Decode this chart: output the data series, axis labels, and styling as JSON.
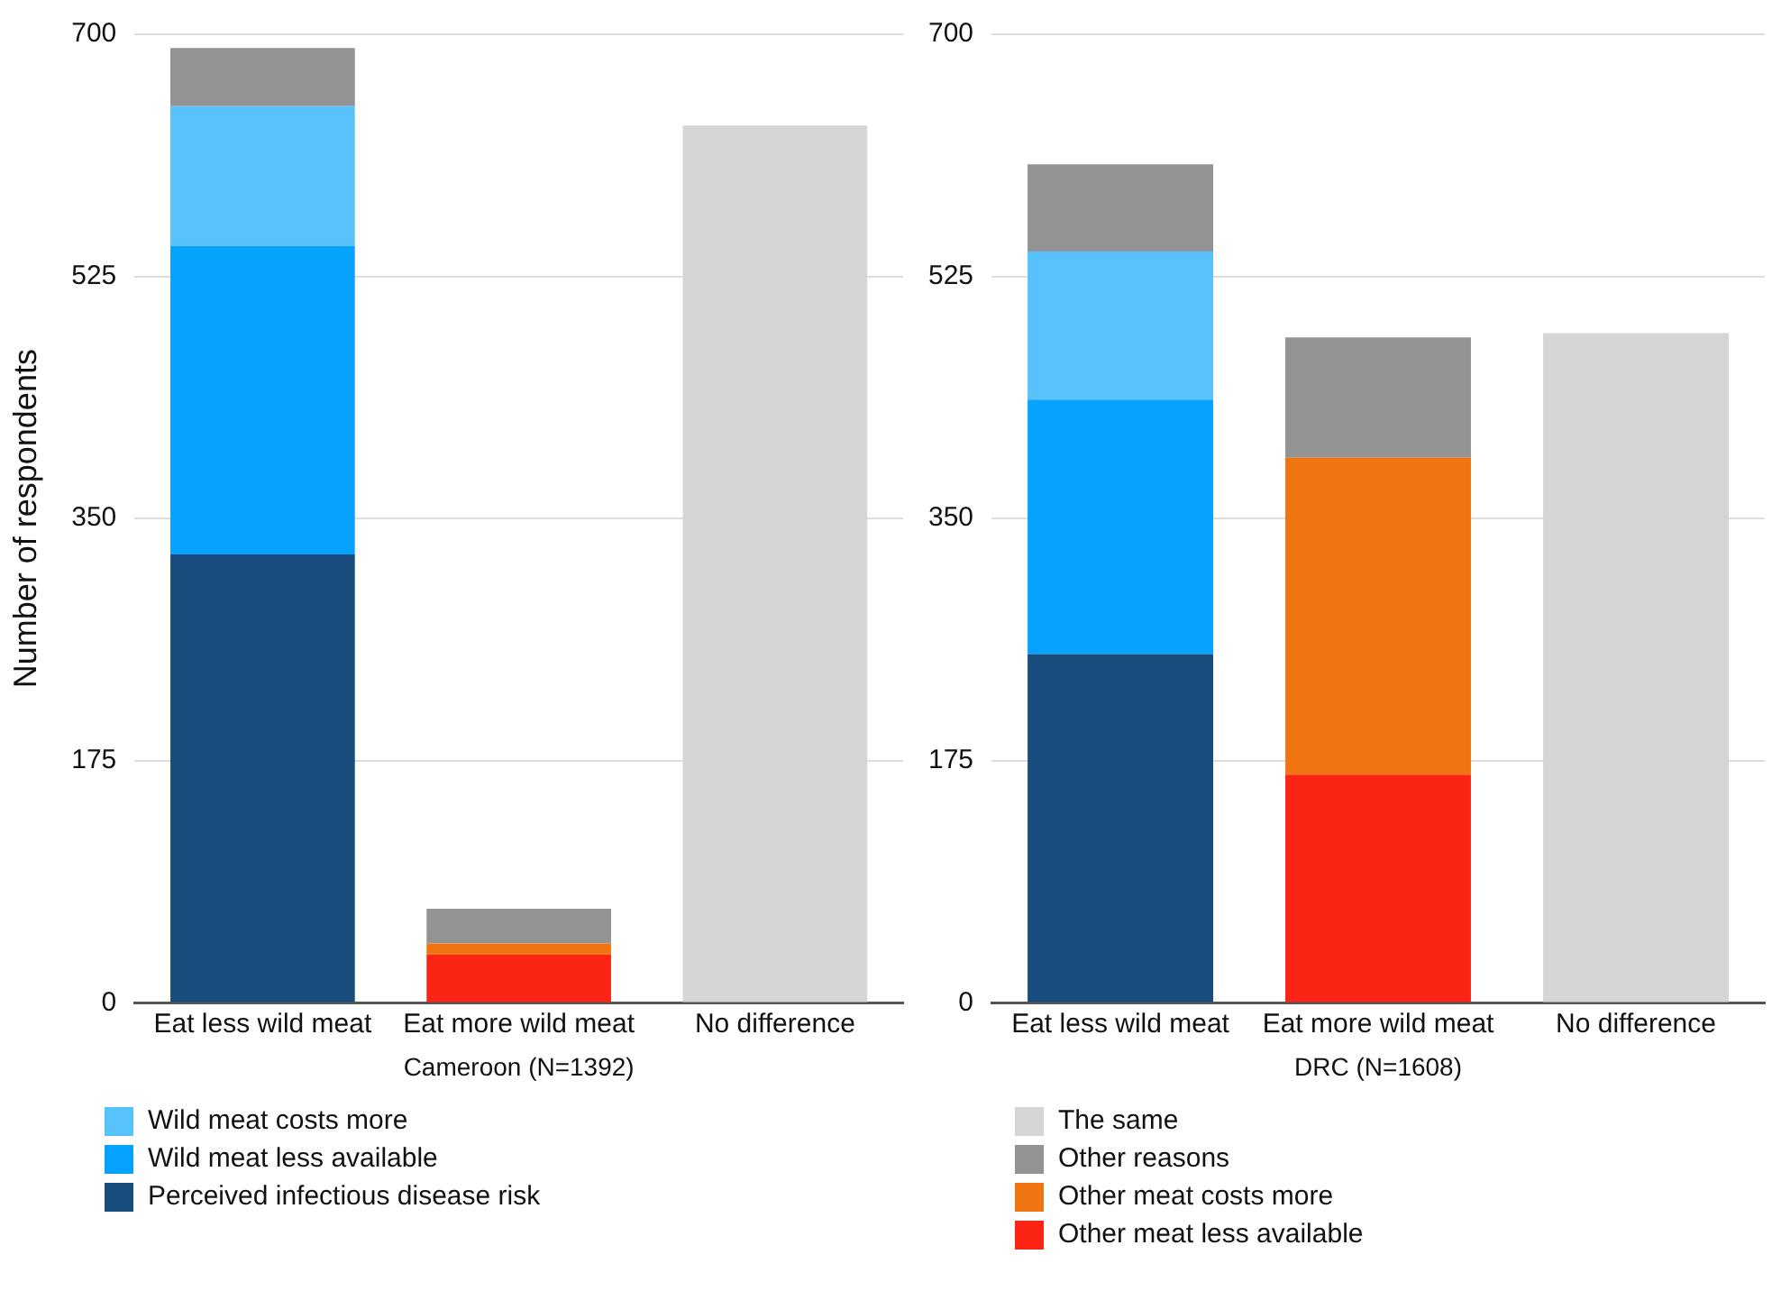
{
  "chart_data": [
    {
      "type": "bar",
      "stacked": true,
      "xlabel": "Cameroon (N=1392)",
      "ylabel": "Number of respondents",
      "categories": [
        "Eat less wild meat",
        "Eat more wild meat",
        "No difference"
      ],
      "ylim": [
        0,
        700
      ],
      "yticks": [
        0,
        175,
        350,
        525,
        700
      ],
      "grid": "y",
      "legend": "bottom",
      "series": [
        {
          "name": "Perceived infectious disease risk",
          "color": "#184c7c",
          "values": [
            324,
            null,
            null
          ]
        },
        {
          "name": "Wild meat less available",
          "color": "#05a3fd",
          "values": [
            223,
            null,
            null
          ]
        },
        {
          "name": "Wild meat costs more",
          "color": "#58c2fd",
          "values": [
            101,
            null,
            null
          ]
        },
        {
          "color": "#fc2515",
          "values": [
            null,
            35,
            null
          ]
        },
        {
          "color": "#f07410",
          "values": [
            null,
            8,
            null
          ]
        },
        {
          "color": "#939393",
          "values": [
            42,
            25,
            null
          ]
        },
        {
          "color": "#d5d5d5",
          "values": [
            null,
            null,
            634
          ]
        }
      ]
    },
    {
      "type": "bar",
      "stacked": true,
      "xlabel": "DRC (N=1608)",
      "categories": [
        "Eat less wild meat",
        "Eat more wild meat",
        "No difference"
      ],
      "ylim": [
        0,
        700
      ],
      "yticks": [
        0,
        175,
        350,
        525,
        700
      ],
      "grid": "y",
      "legend": "bottom",
      "series": [
        {
          "color": "#184c7c",
          "values": [
            252,
            null,
            null
          ]
        },
        {
          "color": "#05a3fd",
          "values": [
            184,
            null,
            null
          ]
        },
        {
          "color": "#58c2fd",
          "values": [
            107,
            null,
            null
          ]
        },
        {
          "name": "Other meat less available",
          "color": "#fc2515",
          "values": [
            null,
            165,
            null
          ]
        },
        {
          "name": "Other meat costs more",
          "color": "#f07410",
          "values": [
            null,
            229,
            null
          ]
        },
        {
          "name": "Other reasons",
          "color": "#939393",
          "values": [
            63,
            87,
            null
          ]
        },
        {
          "name": "The same",
          "color": "#d5d5d5",
          "values": [
            null,
            null,
            484
          ]
        }
      ]
    }
  ]
}
